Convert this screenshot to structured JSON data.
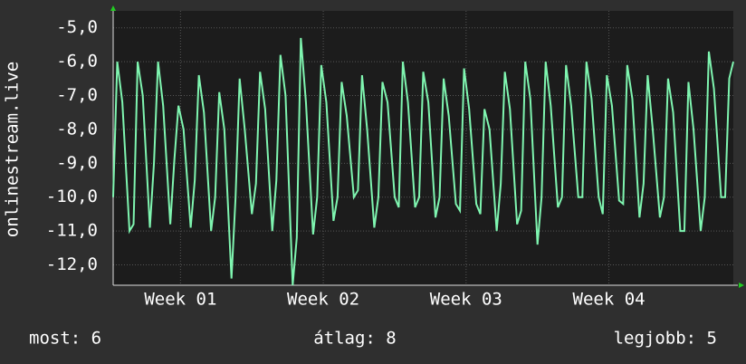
{
  "chart_data": {
    "type": "line",
    "y_label": "onlinestream.live",
    "color": "#7ff5b0",
    "grid": true,
    "ylim": [
      -12.6,
      -4.5
    ],
    "yticks": [
      {
        "value": -5,
        "label": "-5,0"
      },
      {
        "value": -6,
        "label": "-6,0"
      },
      {
        "value": -7,
        "label": "-7,0"
      },
      {
        "value": -8,
        "label": "-8,0"
      },
      {
        "value": -9,
        "label": "-9,0"
      },
      {
        "value": -10,
        "label": "-10,0"
      },
      {
        "value": -11,
        "label": "-11,0"
      },
      {
        "value": -12,
        "label": "-12,0"
      }
    ],
    "xlim": [
      0,
      30.4
    ],
    "xticks": [
      {
        "value": 3.3,
        "label": "Week 01"
      },
      {
        "value": 10.3,
        "label": "Week 02"
      },
      {
        "value": 17.3,
        "label": "Week 03"
      },
      {
        "value": 24.3,
        "label": "Week 04"
      }
    ],
    "x": [
      0,
      0.2,
      0.45,
      0.8,
      1,
      1.2,
      1.45,
      1.8,
      2,
      2.2,
      2.45,
      2.8,
      3,
      3.2,
      3.45,
      3.8,
      4,
      4.2,
      4.45,
      4.8,
      5,
      5.2,
      5.45,
      5.8,
      6,
      6.2,
      6.45,
      6.8,
      7,
      7.2,
      7.45,
      7.8,
      8,
      8.2,
      8.45,
      8.8,
      9,
      9.2,
      9.45,
      9.8,
      10,
      10.2,
      10.45,
      10.8,
      11,
      11.2,
      11.45,
      11.8,
      12,
      12.2,
      12.45,
      12.8,
      13,
      13.2,
      13.45,
      13.8,
      14,
      14.2,
      14.45,
      14.8,
      15,
      15.2,
      15.45,
      15.8,
      16,
      16.2,
      16.45,
      16.8,
      17,
      17.2,
      17.45,
      17.8,
      18,
      18.2,
      18.45,
      18.8,
      19,
      19.2,
      19.45,
      19.8,
      20,
      20.2,
      20.45,
      20.8,
      21,
      21.2,
      21.45,
      21.8,
      22,
      22.2,
      22.45,
      22.8,
      23,
      23.2,
      23.45,
      23.8,
      24,
      24.2,
      24.45,
      24.8,
      25,
      25.2,
      25.45,
      25.8,
      26,
      26.2,
      26.45,
      26.8,
      27,
      27.2,
      27.45,
      27.8,
      28,
      28.2,
      28.45,
      28.8,
      29,
      29.2,
      29.45,
      29.8,
      30,
      30.2,
      30.4
    ],
    "values": [
      -10,
      -6.0,
      -7.2,
      -11.0,
      -10.8,
      -6.0,
      -7.0,
      -10.9,
      -9.0,
      -6.0,
      -7.3,
      -10.8,
      -8.9,
      -7.3,
      -8.0,
      -10.9,
      -9.5,
      -6.4,
      -7.5,
      -11.0,
      -10.0,
      -6.9,
      -8.0,
      -12.4,
      -10.0,
      -6.5,
      -8.0,
      -10.5,
      -9.6,
      -6.3,
      -7.4,
      -11.0,
      -9.5,
      -5.8,
      -7.0,
      -12.6,
      -11.2,
      -5.3,
      -7.2,
      -11.1,
      -10.0,
      -6.1,
      -7.2,
      -10.7,
      -10.0,
      -6.6,
      -7.6,
      -10.0,
      -9.8,
      -6.4,
      -8.0,
      -10.9,
      -10.0,
      -6.6,
      -7.2,
      -10.0,
      -10.3,
      -6.0,
      -7.2,
      -10.3,
      -10.0,
      -6.3,
      -7.2,
      -10.6,
      -10.0,
      -6.5,
      -7.6,
      -10.2,
      -10.4,
      -6.2,
      -7.4,
      -10.2,
      -10.5,
      -7.4,
      -8.0,
      -11.0,
      -9.6,
      -6.3,
      -7.4,
      -10.8,
      -10.4,
      -6.0,
      -7.1,
      -11.4,
      -10.0,
      -6.0,
      -7.3,
      -10.3,
      -10.0,
      -6.1,
      -7.3,
      -10.0,
      -10.0,
      -6.0,
      -7.1,
      -10.0,
      -10.5,
      -6.4,
      -7.3,
      -10.1,
      -10.2,
      -6.1,
      -7.1,
      -10.6,
      -9.6,
      -6.4,
      -8.0,
      -10.6,
      -10.0,
      -6.5,
      -7.5,
      -11.0,
      -11.0,
      -6.6,
      -8.0,
      -11.0,
      -10.0,
      -5.7,
      -6.8,
      -10.0,
      -10.0,
      -6.5,
      -6.0
    ]
  },
  "footer": {
    "left": "most: 6",
    "center": "átlag: 8",
    "right": "legjobb: 5"
  }
}
